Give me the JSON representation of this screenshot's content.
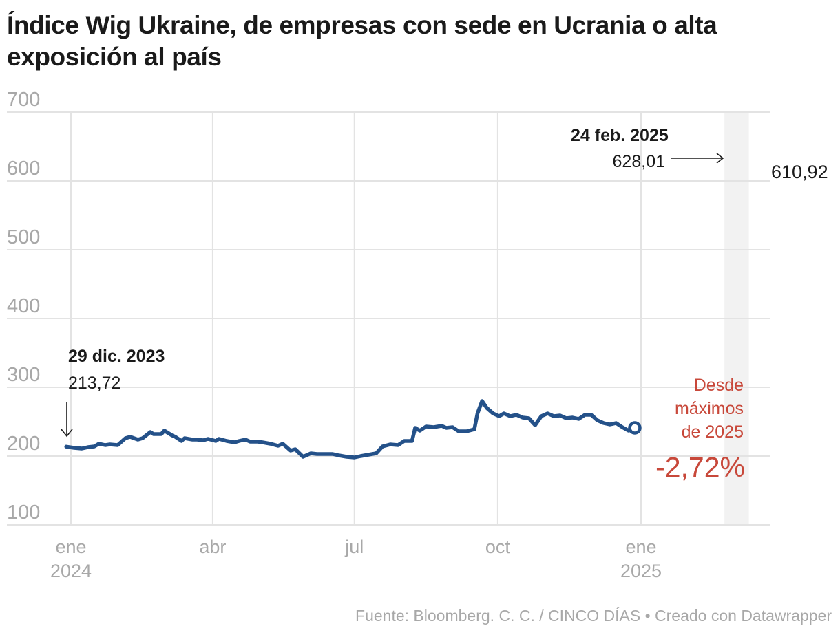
{
  "chart_data": {
    "type": "line",
    "title": "Índice Wig Ukraine, de empresas con sede en Ucrania o alta exposición al país",
    "xlabel": "",
    "ylabel": "",
    "ylim": [
      100,
      700
    ],
    "yticks": [
      100,
      200,
      300,
      400,
      500,
      600,
      700
    ],
    "ytick_labels": [
      "100",
      "200",
      "300",
      "400",
      "500",
      "600",
      "700"
    ],
    "xticks": [
      {
        "date": "2024-01-01",
        "label": "ene",
        "sublabel": "2024"
      },
      {
        "date": "2024-04-01",
        "label": "abr",
        "sublabel": ""
      },
      {
        "date": "2024-07-01",
        "label": "jul",
        "sublabel": ""
      },
      {
        "date": "2024-10-01",
        "label": "oct",
        "sublabel": ""
      },
      {
        "date": "2025-01-01",
        "label": "ene",
        "sublabel": "2025"
      }
    ],
    "xlim": [
      "2023-12-26",
      "2025-03-20"
    ],
    "grid": true,
    "highlight_range": [
      "2025-02-24",
      "2025-03-13"
    ],
    "series": [
      {
        "name": "Wig Ukraine",
        "color": "#245189",
        "points": [
          [
            "2023-12-29",
            213.72
          ],
          [
            "2024-01-03",
            212
          ],
          [
            "2024-01-08",
            211
          ],
          [
            "2024-01-12",
            213
          ],
          [
            "2024-01-16",
            214
          ],
          [
            "2024-01-19",
            218
          ],
          [
            "2024-01-23",
            216
          ],
          [
            "2024-01-26",
            217
          ],
          [
            "2024-01-31",
            216
          ],
          [
            "2024-02-05",
            226
          ],
          [
            "2024-02-08",
            228
          ],
          [
            "2024-02-13",
            224
          ],
          [
            "2024-02-16",
            226
          ],
          [
            "2024-02-21",
            235
          ],
          [
            "2024-02-23",
            232
          ],
          [
            "2024-02-28",
            232
          ],
          [
            "2024-03-01",
            237
          ],
          [
            "2024-03-06",
            230
          ],
          [
            "2024-03-08",
            228
          ],
          [
            "2024-03-12",
            222
          ],
          [
            "2024-03-14",
            226
          ],
          [
            "2024-03-19",
            224
          ],
          [
            "2024-03-22",
            224
          ],
          [
            "2024-03-26",
            223
          ],
          [
            "2024-03-29",
            225
          ],
          [
            "2024-04-03",
            222
          ],
          [
            "2024-04-05",
            225
          ],
          [
            "2024-04-10",
            222
          ],
          [
            "2024-04-15",
            220
          ],
          [
            "2024-04-18",
            222
          ],
          [
            "2024-04-22",
            224
          ],
          [
            "2024-04-25",
            221
          ],
          [
            "2024-04-30",
            221
          ],
          [
            "2024-05-03",
            220
          ],
          [
            "2024-05-08",
            218
          ],
          [
            "2024-05-13",
            215
          ],
          [
            "2024-05-16",
            218
          ],
          [
            "2024-05-21",
            208
          ],
          [
            "2024-05-24",
            210
          ],
          [
            "2024-05-29",
            199
          ],
          [
            "2024-06-03",
            204
          ],
          [
            "2024-06-07",
            203
          ],
          [
            "2024-06-12",
            203
          ],
          [
            "2024-06-17",
            203
          ],
          [
            "2024-06-21",
            201
          ],
          [
            "2024-06-26",
            199
          ],
          [
            "2024-07-01",
            198
          ],
          [
            "2024-07-05",
            200
          ],
          [
            "2024-07-10",
            202
          ],
          [
            "2024-07-15",
            204
          ],
          [
            "2024-07-19",
            214
          ],
          [
            "2024-07-24",
            217
          ],
          [
            "2024-07-29",
            216
          ],
          [
            "2024-08-02",
            222
          ],
          [
            "2024-08-07",
            222
          ],
          [
            "2024-08-09",
            241
          ],
          [
            "2024-08-12",
            237
          ],
          [
            "2024-08-16",
            243
          ],
          [
            "2024-08-21",
            242
          ],
          [
            "2024-08-26",
            244
          ],
          [
            "2024-08-29",
            241
          ],
          [
            "2024-09-02",
            242
          ],
          [
            "2024-09-06",
            236
          ],
          [
            "2024-09-11",
            236
          ],
          [
            "2024-09-16",
            239
          ],
          [
            "2024-09-18",
            262
          ],
          [
            "2024-09-21",
            280
          ],
          [
            "2024-09-24",
            270
          ],
          [
            "2024-09-28",
            262
          ],
          [
            "2024-10-02",
            258
          ],
          [
            "2024-10-05",
            262
          ],
          [
            "2024-10-09",
            258
          ],
          [
            "2024-10-13",
            260
          ],
          [
            "2024-10-17",
            256
          ],
          [
            "2024-10-21",
            255
          ],
          [
            "2024-10-25",
            245
          ],
          [
            "2024-10-29",
            258
          ],
          [
            "2024-11-02",
            262
          ],
          [
            "2024-11-06",
            258
          ],
          [
            "2024-11-10",
            259
          ],
          [
            "2024-11-14",
            255
          ],
          [
            "2024-11-18",
            256
          ],
          [
            "2024-11-22",
            254
          ],
          [
            "2024-11-26",
            260
          ],
          [
            "2024-11-30",
            260
          ],
          [
            "2024-12-04",
            252
          ],
          [
            "2024-12-08",
            248
          ],
          [
            "2024-12-12",
            246
          ],
          [
            "2024-12-16",
            248
          ],
          [
            "2024-12-20",
            242
          ],
          [
            "2024-12-24",
            237
          ],
          [
            "2024-12-28",
            241
          ]
        ],
        "points_2025": []
      }
    ],
    "annotations": [
      {
        "date": "2023-12-29",
        "title": "29 dic. 2023",
        "value_label": "213,72"
      },
      {
        "date": "2025-02-24",
        "title": "24 feb. 2025",
        "value_label": "628,01"
      },
      {
        "date": "2025-03-13",
        "value_label": "610,92",
        "type": "end-marker"
      },
      {
        "text": [
          "Desde",
          "máximos",
          "de 2025"
        ],
        "value_label": "-2,72%",
        "color": "#c8483a"
      }
    ]
  },
  "footer": {
    "text": "Fuente: Bloomberg. C. C. / CINCO DÍAS • Creado con Datawrapper"
  }
}
